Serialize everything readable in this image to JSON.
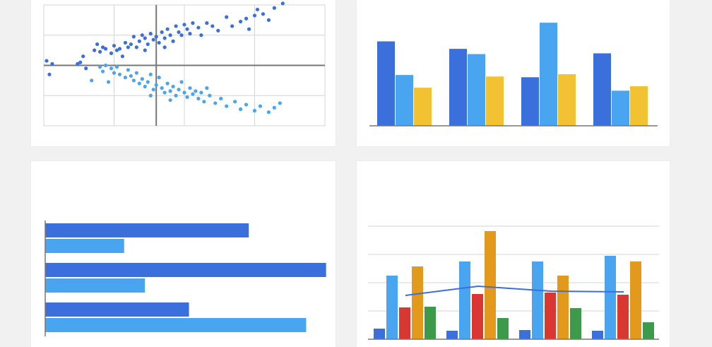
{
  "colors": {
    "dark_blue": "#3a6fdc",
    "light_blue": "#4aa5f0",
    "yellow": "#f2c233",
    "red": "#d93832",
    "orange": "#e39a1c",
    "green": "#3e9a4b",
    "grid": "#d4d4d4",
    "axis": "#777777"
  },
  "chart_data": [
    {
      "type": "scatter",
      "title": "",
      "xlabel": "",
      "ylabel": "",
      "grid": true,
      "xlim": [
        -4,
        6
      ],
      "ylim": [
        -2,
        2
      ],
      "series": [
        {
          "color": "#3a6fdc",
          "points": [
            [
              -3.9,
              0.15
            ],
            [
              -3.8,
              -0.3
            ],
            [
              -3.7,
              0.05
            ],
            [
              -2.8,
              0.05
            ],
            [
              -2.7,
              0.1
            ],
            [
              -2.6,
              0.3
            ],
            [
              -2.5,
              -0.1
            ],
            [
              -2.2,
              0.5
            ],
            [
              -2.1,
              0.7
            ],
            [
              -2.0,
              0.45
            ],
            [
              -1.9,
              0.6
            ],
            [
              -1.8,
              0.55
            ],
            [
              -1.6,
              0.4
            ],
            [
              -1.5,
              0.65
            ],
            [
              -1.4,
              0.5
            ],
            [
              -1.3,
              0.55
            ],
            [
              -1.1,
              0.75
            ],
            [
              -1.0,
              0.6
            ],
            [
              -0.9,
              0.7
            ],
            [
              -0.8,
              0.95
            ],
            [
              -0.7,
              0.6
            ],
            [
              -0.6,
              0.8
            ],
            [
              -0.5,
              1.0
            ],
            [
              -0.4,
              0.9
            ],
            [
              -0.3,
              0.7
            ],
            [
              -0.2,
              1.05
            ],
            [
              -0.1,
              0.85
            ],
            [
              0.0,
              0.95
            ],
            [
              0.1,
              0.75
            ],
            [
              0.2,
              1.1
            ],
            [
              0.3,
              0.9
            ],
            [
              0.4,
              1.2
            ],
            [
              0.5,
              1.0
            ],
            [
              0.6,
              0.8
            ],
            [
              0.7,
              1.3
            ],
            [
              0.8,
              1.1
            ],
            [
              0.9,
              1.0
            ],
            [
              1.0,
              1.35
            ],
            [
              1.1,
              1.2
            ],
            [
              1.2,
              1.05
            ],
            [
              1.3,
              1.4
            ],
            [
              1.5,
              1.25
            ],
            [
              1.6,
              1.0
            ],
            [
              1.8,
              1.4
            ],
            [
              2.0,
              1.3
            ],
            [
              2.2,
              1.15
            ],
            [
              2.5,
              1.6
            ],
            [
              2.7,
              1.3
            ],
            [
              3.0,
              1.45
            ],
            [
              3.2,
              1.55
            ],
            [
              3.5,
              1.65
            ],
            [
              3.6,
              1.85
            ],
            [
              3.8,
              1.7
            ],
            [
              4.0,
              1.5
            ],
            [
              4.2,
              1.9
            ],
            [
              4.5,
              2.05
            ],
            [
              3.3,
              1.2
            ],
            [
              -0.4,
              0.5
            ],
            [
              0.3,
              0.6
            ],
            [
              -1.2,
              0.3
            ]
          ]
        },
        {
          "color": "#4aa5f0",
          "points": [
            [
              -2.0,
              -0.05
            ],
            [
              -1.9,
              -0.2
            ],
            [
              -1.8,
              0.0
            ],
            [
              -1.6,
              -0.1
            ],
            [
              -1.5,
              -0.25
            ],
            [
              -1.4,
              -0.05
            ],
            [
              -1.3,
              -0.3
            ],
            [
              -1.1,
              -0.4
            ],
            [
              -1.0,
              -0.15
            ],
            [
              -0.9,
              -0.35
            ],
            [
              -0.8,
              -0.5
            ],
            [
              -0.7,
              -0.25
            ],
            [
              -0.6,
              -0.6
            ],
            [
              -0.5,
              -0.45
            ],
            [
              -0.4,
              -0.7
            ],
            [
              -0.3,
              -0.55
            ],
            [
              -0.2,
              -0.3
            ],
            [
              -0.1,
              -0.8
            ],
            [
              0.0,
              -0.65
            ],
            [
              0.1,
              -0.4
            ],
            [
              0.2,
              -0.75
            ],
            [
              0.3,
              -0.9
            ],
            [
              0.4,
              -0.6
            ],
            [
              0.5,
              -0.85
            ],
            [
              0.6,
              -0.7
            ],
            [
              0.7,
              -1.0
            ],
            [
              0.8,
              -0.8
            ],
            [
              0.9,
              -0.55
            ],
            [
              1.0,
              -0.9
            ],
            [
              1.1,
              -1.05
            ],
            [
              1.2,
              -0.75
            ],
            [
              1.3,
              -0.95
            ],
            [
              1.4,
              -0.85
            ],
            [
              1.5,
              -1.1
            ],
            [
              1.6,
              -0.9
            ],
            [
              1.7,
              -1.2
            ],
            [
              1.9,
              -1.0
            ],
            [
              2.1,
              -1.25
            ],
            [
              2.3,
              -1.1
            ],
            [
              2.5,
              -1.35
            ],
            [
              2.8,
              -1.2
            ],
            [
              3.0,
              -1.45
            ],
            [
              3.2,
              -1.3
            ],
            [
              3.5,
              -1.5
            ],
            [
              3.7,
              -1.35
            ],
            [
              4.0,
              -1.55
            ],
            [
              4.2,
              -1.4
            ],
            [
              4.4,
              -1.25
            ],
            [
              -2.3,
              -0.5
            ],
            [
              -1.7,
              -0.55
            ],
            [
              -0.2,
              -1.0
            ],
            [
              0.5,
              -1.15
            ],
            [
              1.8,
              -0.75
            ]
          ]
        }
      ]
    },
    {
      "type": "bar",
      "title": "",
      "xlabel": "",
      "ylabel": "",
      "ylim": [
        0,
        140
      ],
      "categories": [
        "",
        "",
        "",
        ""
      ],
      "series": [
        {
          "color": "#3a6fdc",
          "values": [
            113,
            103,
            65,
            97
          ]
        },
        {
          "color": "#4aa5f0",
          "values": [
            68,
            96,
            138,
            47
          ]
        },
        {
          "color": "#f2c233",
          "values": [
            51,
            66,
            69,
            53
          ]
        }
      ]
    },
    {
      "type": "bar",
      "orientation": "horizontal",
      "title": "",
      "xlabel": "",
      "ylabel": "",
      "xlim": [
        0,
        340
      ],
      "categories": [
        "",
        "",
        ""
      ],
      "series": [
        {
          "color": "#3a6fdc",
          "values": [
            245,
            338,
            173
          ]
        },
        {
          "color": "#4aa5f0",
          "values": [
            95,
            120,
            314
          ]
        }
      ]
    },
    {
      "type": "bar",
      "title": "",
      "xlabel": "",
      "ylabel": "",
      "grid": true,
      "ylim": [
        0,
        170
      ],
      "categories": [
        "",
        "",
        "",
        ""
      ],
      "series": [
        {
          "color": "#3a6fdc",
          "values": [
            15,
            12,
            13,
            12
          ]
        },
        {
          "color": "#4aa5f0",
          "values": [
            90,
            110,
            110,
            118
          ]
        },
        {
          "color": "#d93832",
          "values": [
            45,
            64,
            66,
            63
          ]
        },
        {
          "color": "#e39a1c",
          "values": [
            103,
            153,
            90,
            110
          ]
        },
        {
          "color": "#3e9a4b",
          "values": [
            46,
            30,
            44,
            24
          ]
        }
      ],
      "line": {
        "color": "#3a6fdc",
        "values": [
          62,
          75,
          68,
          67
        ]
      }
    }
  ]
}
